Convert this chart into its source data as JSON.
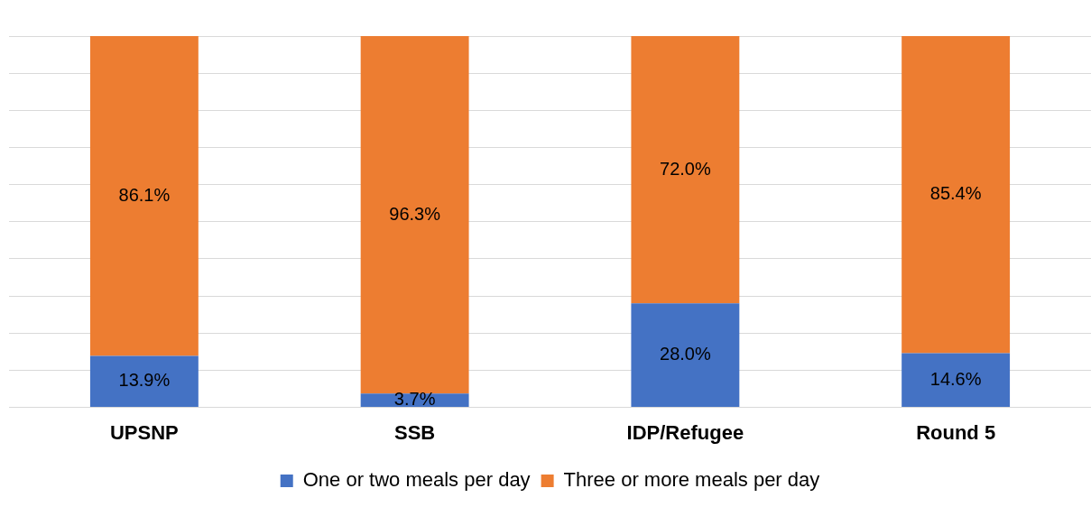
{
  "chart_data": {
    "type": "bar",
    "stacked": true,
    "categories": [
      "UPSNP",
      "SSB",
      "IDP/Refugee",
      "Round 5"
    ],
    "series": [
      {
        "name": "One or two meals per day",
        "color": "#4472c4",
        "values": [
          13.9,
          3.7,
          28.0,
          14.6
        ],
        "value_labels": [
          "13.9%",
          "3.7%",
          "28.0%",
          "14.6%"
        ]
      },
      {
        "name": "Three or more meals per day",
        "color": "#ed7d31",
        "values": [
          86.1,
          96.3,
          72.0,
          85.4
        ],
        "value_labels": [
          "86.1%",
          "96.3%",
          "72.0%",
          "85.4%"
        ]
      }
    ],
    "grid": "y",
    "legend": "bottom",
    "tick_labels": "x"
  }
}
